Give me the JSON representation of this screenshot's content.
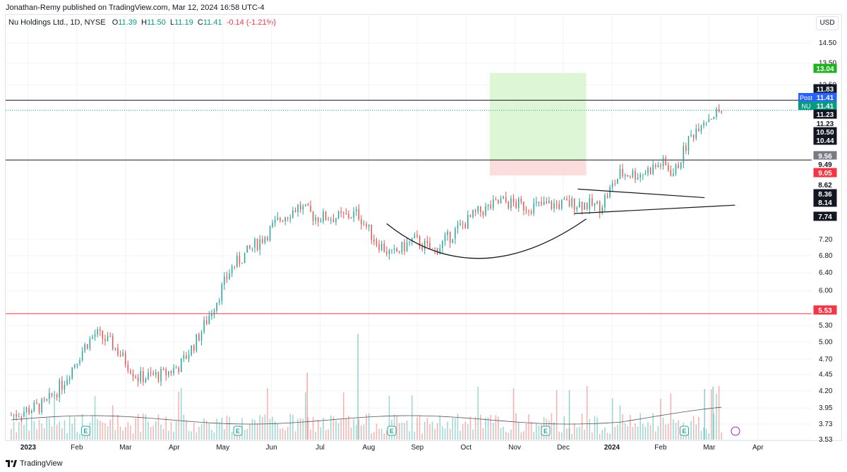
{
  "header": {
    "published": "Jonathan-Remy published on TradingView.com, Mar 12, 2024 16:58 UTC-4"
  },
  "legend": {
    "symbol": "Nu Holdings Ltd., 1D, NYSE",
    "o_label": "O",
    "o": "11.39",
    "h_label": "H",
    "h": "11.50",
    "l_label": "L",
    "l": "11.19",
    "c_label": "C",
    "c": "11.41",
    "change": "-0.14 (-1.21%)"
  },
  "currency": "USD",
  "footer": {
    "brand": "TradingView"
  },
  "colors": {
    "up": "#26a69a",
    "down": "#ef5350",
    "grid": "#f0f3fa",
    "target_zone": "#d4f5cc",
    "stop_zone": "#fbd9d9",
    "resistance_red": "#f23645",
    "level_black": "#131722",
    "price_line": "#2962ff"
  },
  "chart_data": {
    "type": "candlestick",
    "scale": "log",
    "ylim": [
      3.53,
      16.0
    ],
    "price_ticks": [
      "14.50",
      "13.50",
      "12.50",
      "7.20",
      "6.80",
      "6.40",
      "6.00",
      "5.30",
      "5.00",
      "4.70",
      "4.45",
      "4.20",
      "3.95",
      "3.73",
      "3.53"
    ],
    "x_labels": [
      "2023",
      "Feb",
      "Mar",
      "Apr",
      "May",
      "Jun",
      "Jul",
      "Aug",
      "Sep",
      "Oct",
      "Nov",
      "Dec",
      "2024",
      "Feb",
      "Mar",
      "Apr"
    ],
    "price_badges": [
      {
        "text": "13.04",
        "color": "#1eb31e",
        "text_color": "#ffffff"
      },
      {
        "text": "11.83",
        "color": "#131722",
        "text_color": "#ffffff"
      },
      {
        "text": "11.41",
        "color": "#2962ff",
        "text_color": "#ffffff",
        "tag": "Post"
      },
      {
        "text": "11.41",
        "color": "#089981",
        "text_color": "#ffffff",
        "tag": "NU"
      },
      {
        "text": "11.23",
        "color": "#131722",
        "text_color": "#ffffff"
      },
      {
        "text": "11.23",
        "color": "#ffffff",
        "text_color": "#131722"
      },
      {
        "text": "10.50",
        "color": "#131722",
        "text_color": "#ffffff"
      },
      {
        "text": "10.44",
        "color": "#131722",
        "text_color": "#ffffff"
      },
      {
        "text": "9.56",
        "color": "#787b86",
        "text_color": "#ffffff"
      },
      {
        "text": "9.49",
        "color": "#ffffff",
        "text_color": "#131722"
      },
      {
        "text": "9.05",
        "color": "#f23645",
        "text_color": "#ffffff"
      },
      {
        "text": "8.62",
        "color": "#ffffff",
        "text_color": "#131722"
      },
      {
        "text": "8.36",
        "color": "#131722",
        "text_color": "#ffffff"
      },
      {
        "text": "8.14",
        "color": "#131722",
        "text_color": "#ffffff"
      },
      {
        "text": "7.74",
        "color": "#131722",
        "text_color": "#ffffff"
      },
      {
        "text": "5.53",
        "color": "#f23645",
        "text_color": "#ffffff"
      }
    ],
    "horizontal_levels": [
      {
        "price": 11.83,
        "color": "#131722"
      },
      {
        "price": 9.56,
        "color": "#131722"
      },
      {
        "price": 5.53,
        "color": "#f23645"
      }
    ],
    "position_zone": {
      "target": 13.04,
      "entry": 9.56,
      "stop": 9.05,
      "start_day": 283,
      "end_day": 340
    },
    "events": [
      {
        "label": "E",
        "day": 44
      },
      {
        "label": "E",
        "day": 134
      },
      {
        "label": "E",
        "day": 225
      },
      {
        "label": "E",
        "day": 316
      },
      {
        "label": "E",
        "day": 398
      }
    ],
    "close_approx": [
      {
        "day": 0,
        "close": 3.85
      },
      {
        "day": 20,
        "close": 4.0
      },
      {
        "day": 30,
        "close": 4.3
      },
      {
        "day": 44,
        "close": 4.95
      },
      {
        "day": 50,
        "close": 5.15
      },
      {
        "day": 60,
        "close": 4.95
      },
      {
        "day": 75,
        "close": 4.4
      },
      {
        "day": 90,
        "close": 4.45
      },
      {
        "day": 100,
        "close": 4.6
      },
      {
        "day": 110,
        "close": 5.05
      },
      {
        "day": 120,
        "close": 5.7
      },
      {
        "day": 130,
        "close": 6.5
      },
      {
        "day": 140,
        "close": 6.9
      },
      {
        "day": 150,
        "close": 7.3
      },
      {
        "day": 160,
        "close": 7.8
      },
      {
        "day": 170,
        "close": 8.1
      },
      {
        "day": 180,
        "close": 7.8
      },
      {
        "day": 195,
        "close": 7.8
      },
      {
        "day": 205,
        "close": 7.9
      },
      {
        "day": 215,
        "close": 7.2
      },
      {
        "day": 225,
        "close": 6.8
      },
      {
        "day": 238,
        "close": 7.2
      },
      {
        "day": 250,
        "close": 6.9
      },
      {
        "day": 262,
        "close": 7.4
      },
      {
        "day": 275,
        "close": 7.9
      },
      {
        "day": 290,
        "close": 8.25
      },
      {
        "day": 305,
        "close": 8.1
      },
      {
        "day": 320,
        "close": 8.15
      },
      {
        "day": 335,
        "close": 8.2
      },
      {
        "day": 348,
        "close": 8.1
      },
      {
        "day": 360,
        "close": 9.1
      },
      {
        "day": 372,
        "close": 9.1
      },
      {
        "day": 385,
        "close": 9.45
      },
      {
        "day": 392,
        "close": 9.1
      },
      {
        "day": 400,
        "close": 10.2
      },
      {
        "day": 408,
        "close": 11.0
      },
      {
        "day": 415,
        "close": 11.23
      },
      {
        "day": 420,
        "close": 11.41
      }
    ]
  }
}
